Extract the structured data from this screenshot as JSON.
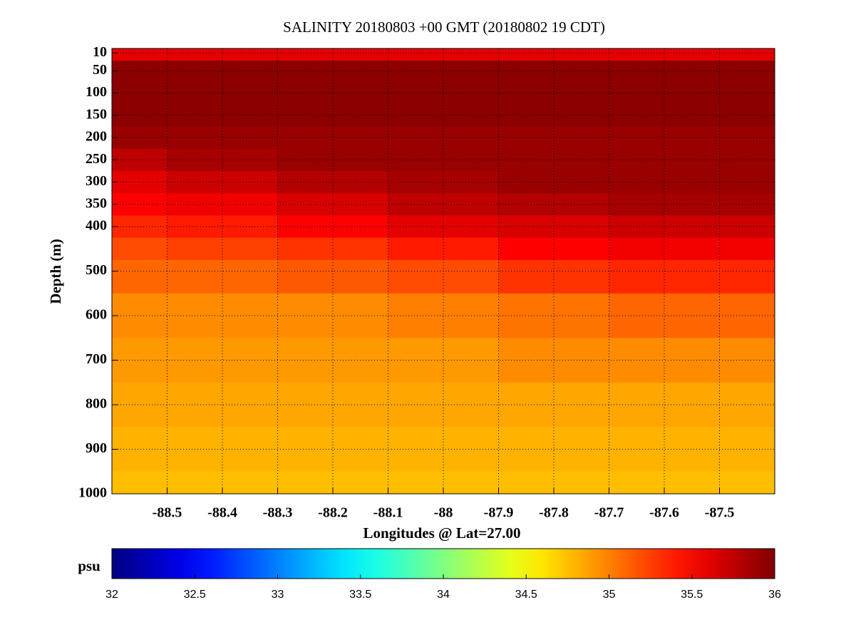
{
  "chart_data": {
    "type": "heatmap",
    "title": "SALINITY 20180803 +00 GMT (20180802 19 CDT)",
    "x_label": "Longitudes @ Lat=27.00",
    "y_label": "Depth (m)",
    "xlim": [
      -88.6,
      -87.4
    ],
    "xticks": [
      -88.5,
      -88.4,
      -88.3,
      -88.2,
      -88.1,
      -88,
      -87.9,
      -87.8,
      -87.7,
      -87.6,
      -87.5
    ],
    "ylim": [
      1000,
      0
    ],
    "yticks": [
      10,
      50,
      100,
      150,
      200,
      250,
      300,
      350,
      400,
      500,
      600,
      700,
      800,
      900,
      1000
    ],
    "grid": true,
    "x": [
      -88.6,
      -88.4,
      -88.2,
      -88.0,
      -87.8,
      -87.6,
      -87.4
    ],
    "y": [
      5,
      50,
      100,
      150,
      200,
      250,
      300,
      350,
      400,
      450,
      500,
      600,
      700,
      800,
      900,
      1000
    ],
    "z": [
      [
        35.6,
        35.6,
        35.6,
        35.6,
        35.6,
        35.6,
        35.6
      ],
      [
        35.95,
        35.95,
        35.95,
        35.95,
        35.95,
        35.95,
        35.95
      ],
      [
        35.95,
        35.95,
        35.95,
        35.95,
        35.95,
        35.95,
        35.95
      ],
      [
        35.95,
        35.95,
        35.95,
        35.95,
        35.95,
        35.95,
        35.95
      ],
      [
        35.9,
        35.9,
        35.9,
        35.9,
        35.9,
        35.9,
        35.9
      ],
      [
        35.75,
        35.85,
        35.9,
        35.9,
        35.9,
        35.9,
        35.9
      ],
      [
        35.6,
        35.7,
        35.8,
        35.85,
        35.9,
        35.9,
        35.9
      ],
      [
        35.5,
        35.55,
        35.65,
        35.75,
        35.8,
        35.85,
        35.85
      ],
      [
        35.35,
        35.4,
        35.5,
        35.6,
        35.65,
        35.7,
        35.7
      ],
      [
        35.2,
        35.25,
        35.3,
        35.4,
        35.5,
        35.55,
        35.55
      ],
      [
        35.1,
        35.1,
        35.15,
        35.2,
        35.3,
        35.35,
        35.35
      ],
      [
        34.95,
        34.95,
        34.95,
        35.0,
        35.05,
        35.1,
        35.1
      ],
      [
        34.9,
        34.9,
        34.9,
        34.9,
        34.95,
        34.95,
        34.95
      ],
      [
        34.85,
        34.85,
        34.85,
        34.85,
        34.85,
        34.85,
        34.85
      ],
      [
        34.8,
        34.8,
        34.8,
        34.8,
        34.8,
        34.8,
        34.8
      ],
      [
        34.75,
        34.75,
        34.75,
        34.75,
        34.75,
        34.75,
        34.75
      ]
    ],
    "colormap": "jet",
    "colorbar": {
      "label": "psu",
      "lim": [
        32,
        36
      ],
      "ticks": [
        32,
        32.5,
        33,
        33.5,
        34,
        34.5,
        35,
        35.5,
        36
      ]
    }
  }
}
